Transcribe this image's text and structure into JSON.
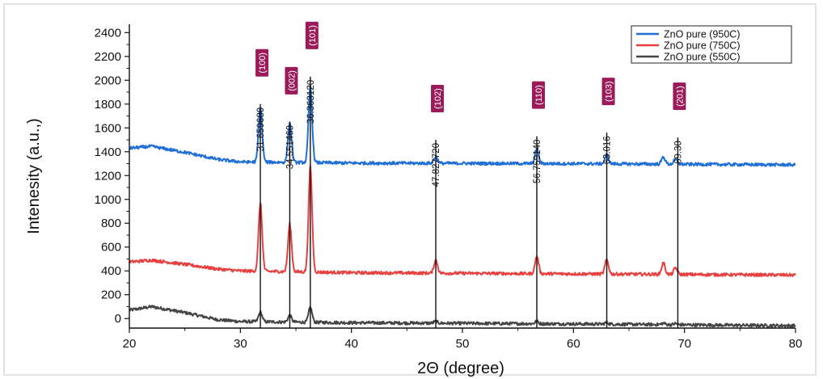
{
  "chart_data": {
    "type": "line",
    "xlabel": "2Θ (degree)",
    "ylabel": "Intenesity (a.u.,)",
    "xlim": [
      20,
      80
    ],
    "ylim": [
      -80,
      2470
    ],
    "xticks": [
      "20",
      "30",
      "40",
      "50",
      "60",
      "70",
      "80"
    ],
    "yticks": [
      "0",
      "200",
      "400",
      "600",
      "800",
      "1000",
      "1200",
      "1400",
      "1600",
      "1800",
      "2000",
      "2200",
      "2400"
    ],
    "grid": false,
    "legend_position": "top-right",
    "series": [
      {
        "name": "ZnO pure (950C)",
        "color": "#1f6fd6",
        "baseline": [
          [
            20,
            1430
          ],
          [
            22,
            1445
          ],
          [
            25,
            1395
          ],
          [
            28,
            1335
          ],
          [
            30,
            1315
          ],
          [
            40,
            1305
          ],
          [
            60,
            1300
          ],
          [
            80,
            1290
          ]
        ],
        "peaks": [
          [
            31.8,
            460
          ],
          [
            34.45,
            330
          ],
          [
            36.3,
            640
          ],
          [
            47.6,
            55
          ],
          [
            56.7,
            120
          ],
          [
            63.0,
            75
          ],
          [
            68.1,
            60
          ],
          [
            69.2,
            40
          ]
        ]
      },
      {
        "name": "ZnO pure (750C)",
        "color": "#e8403f",
        "baseline": [
          [
            20,
            475
          ],
          [
            22,
            490
          ],
          [
            25,
            455
          ],
          [
            28,
            415
          ],
          [
            30,
            400
          ],
          [
            40,
            385
          ],
          [
            60,
            375
          ],
          [
            80,
            365
          ]
        ],
        "peaks": [
          [
            31.8,
            570
          ],
          [
            34.45,
            400
          ],
          [
            36.3,
            880
          ],
          [
            47.6,
            110
          ],
          [
            56.7,
            145
          ],
          [
            63.0,
            120
          ],
          [
            68.1,
            95
          ],
          [
            69.2,
            55
          ]
        ]
      },
      {
        "name": "ZnO pure (550C)",
        "color": "#444444",
        "baseline": [
          [
            20,
            70
          ],
          [
            22,
            100
          ],
          [
            25,
            50
          ],
          [
            28,
            -10
          ],
          [
            30,
            -25
          ],
          [
            40,
            -35
          ],
          [
            60,
            -45
          ],
          [
            80,
            -60
          ]
        ],
        "peaks": [
          [
            31.8,
            80
          ],
          [
            34.45,
            55
          ],
          [
            36.3,
            125
          ],
          [
            47.6,
            15
          ],
          [
            56.7,
            20
          ],
          [
            63.0,
            15
          ],
          [
            68.1,
            12
          ],
          [
            69.2,
            10
          ]
        ]
      }
    ],
    "reference_lines": [
      {
        "x": 31.8,
        "label": "31.659680",
        "hkl": "(100)",
        "top": 1800
      },
      {
        "x": 34.45,
        "label": "34.551460",
        "hkl": "(002)",
        "top": 1650
      },
      {
        "x": 36.3,
        "label": "36.363120",
        "hkl": "(101)",
        "top": 2030
      },
      {
        "x": 47.6,
        "label": "47.827720",
        "hkl": "(102)",
        "top": 1500
      },
      {
        "x": 56.7,
        "label": "56.759140",
        "hkl": "(110)",
        "top": 1530
      },
      {
        "x": 63.0,
        "label": "63.016",
        "hkl": "(103)",
        "top": 1560
      },
      {
        "x": 69.4,
        "label": "69.30",
        "hkl": "(201)",
        "top": 1520
      }
    ],
    "annotation_color": "#9b1b5a"
  }
}
